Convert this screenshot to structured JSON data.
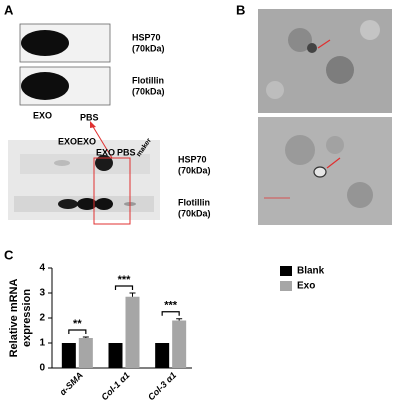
{
  "panel_labels": [
    "A",
    "B",
    "C"
  ],
  "panel_a": {
    "top_markers": [
      {
        "name": "HSP70",
        "size": "(70kDa)"
      },
      {
        "name": "Flotillin",
        "size": "(70kDa)"
      }
    ],
    "top_lanes": [
      "EXO",
      "PBS"
    ],
    "bottom_lanes": [
      "EXO",
      "EXO",
      "EXO",
      "PBS",
      "maker"
    ],
    "bottom_markers": [
      {
        "name": "HSP70",
        "size": "(70kDa)"
      },
      {
        "name": "Flotillin",
        "size": "(70kDa)"
      }
    ]
  },
  "chart_data": {
    "type": "bar",
    "ylabel": [
      "Relative mRNA",
      "expression"
    ],
    "categories": [
      "α-SMA",
      "Col-1 α1",
      "Col-3 α1"
    ],
    "series": [
      {
        "name": "Blank",
        "color": "#000000",
        "values": [
          1,
          1,
          1
        ],
        "errors": [
          0,
          0,
          0
        ]
      },
      {
        "name": "Exo",
        "color": "#a6a6a6",
        "values": [
          1.2,
          2.85,
          1.9
        ],
        "errors": [
          0.04,
          0.15,
          0.07
        ]
      }
    ],
    "annotations": [
      "**",
      "***",
      "***"
    ],
    "ylim": [
      0,
      4
    ],
    "yticks": [
      0,
      1,
      2,
      3,
      4
    ],
    "legend": "upper right"
  }
}
